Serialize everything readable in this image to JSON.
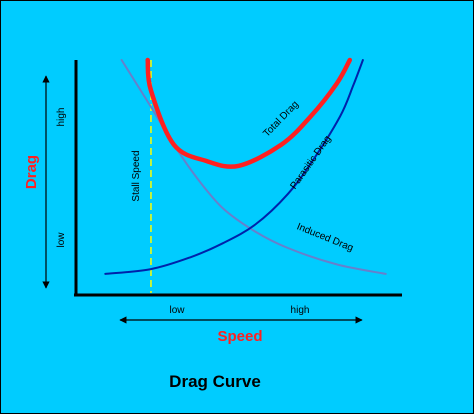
{
  "chart_data": {
    "type": "line",
    "title": "Drag Curve",
    "xlabel": "Speed",
    "ylabel": "Drag",
    "x_ticks": [
      "low",
      "high"
    ],
    "y_ticks": [
      "low",
      "high"
    ],
    "xlim": [
      0,
      10
    ],
    "ylim": [
      0,
      10
    ],
    "grid": false,
    "stall_speed": {
      "label": "Stall Speed",
      "x": 2.3
    },
    "series": [
      {
        "name": "Total Drag",
        "color": "#ff2020",
        "points": [
          [
            2.2,
            10.0
          ],
          [
            2.3,
            8.7
          ],
          [
            3.0,
            6.4
          ],
          [
            4.0,
            5.7
          ],
          [
            5.0,
            5.5
          ],
          [
            6.3,
            6.4
          ],
          [
            7.2,
            7.6
          ],
          [
            8.0,
            9.0
          ],
          [
            8.4,
            10.0
          ]
        ]
      },
      {
        "name": "Parasitic Drag",
        "color": "#0022aa",
        "points": [
          [
            0.9,
            0.9
          ],
          [
            2.3,
            1.1
          ],
          [
            3.5,
            1.6
          ],
          [
            4.5,
            2.2
          ],
          [
            5.5,
            3.0
          ],
          [
            6.5,
            4.3
          ],
          [
            7.3,
            5.8
          ],
          [
            8.1,
            7.6
          ],
          [
            8.5,
            8.9
          ],
          [
            8.8,
            10.0
          ]
        ]
      },
      {
        "name": "Induced Drag",
        "color": "#6680cc",
        "points": [
          [
            1.4,
            10.0
          ],
          [
            2.3,
            8.0
          ],
          [
            3.0,
            6.4
          ],
          [
            3.7,
            5.0
          ],
          [
            4.5,
            3.7
          ],
          [
            5.5,
            2.7
          ],
          [
            6.5,
            2.0
          ],
          [
            8.0,
            1.3
          ],
          [
            9.5,
            0.9
          ]
        ]
      }
    ]
  }
}
